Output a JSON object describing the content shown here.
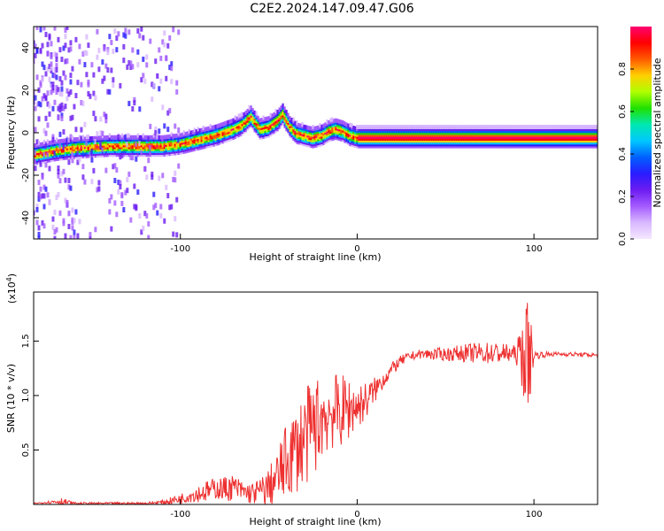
{
  "figure_title": "C2E2.2024.147.09.47.G06",
  "chart_data": [
    {
      "type": "heatmap",
      "title": "",
      "xlabel": "Height of straight line (km)",
      "ylabel": "Frequency (Hz)",
      "xlim": [
        -183,
        136
      ],
      "ylim": [
        -50,
        50
      ],
      "xticks": [
        -100,
        0,
        100
      ],
      "yticks": [
        -40,
        -20,
        0,
        20,
        40
      ],
      "colorbar": {
        "label": "Normalized spectral amplitude",
        "range": [
          0,
          1
        ],
        "ticks": [
          "0.0",
          "0.2",
          "0.4",
          "0.6",
          "0.8"
        ],
        "colors": [
          "#f4e8ff",
          "#d9b8ff",
          "#a45cff",
          "#6c1cf0",
          "#2a1cff",
          "#0060ff",
          "#00c8ff",
          "#00e8b0",
          "#20e000",
          "#b0ff00",
          "#ffd000",
          "#ff5a00",
          "#ff0000",
          "#ff0070"
        ]
      },
      "ridge": {
        "x": [
          -183,
          -170,
          -160,
          -150,
          -140,
          -130,
          -120,
          -110,
          -100,
          -90,
          -80,
          -70,
          -65,
          -60,
          -55,
          -50,
          -45,
          -42,
          -38,
          -34,
          -30,
          -25,
          -20,
          -16,
          -12,
          -8,
          -4,
          0,
          20,
          60,
          100,
          136
        ],
        "freq": [
          -10,
          -8,
          -7,
          -6.5,
          -6,
          -6,
          -6,
          -6,
          -5,
          -3,
          -1,
          2,
          4,
          8,
          2,
          3,
          6,
          9,
          3,
          0,
          -1,
          -2,
          -1,
          1,
          2,
          1,
          -1,
          -2,
          -2,
          -2,
          -2,
          -2
        ]
      },
      "grid": false
    },
    {
      "type": "line",
      "title": "",
      "xlabel": "Height of straight line (km)",
      "ylabel": "SNR (10 * v/v)",
      "y_multiplier_label": "(x10",
      "y_multiplier_exp": "4",
      "y_multiplier_close": ")",
      "xlim": [
        -183,
        136
      ],
      "ylim": [
        0,
        1.95
      ],
      "xticks": [
        -100,
        0,
        100
      ],
      "yticks": [
        0.5,
        1.0,
        1.5
      ],
      "ytick_labels": [
        "0.5",
        "1.0",
        "1.5"
      ],
      "color": "#ee3030",
      "series": [
        {
          "x": [
            -183,
            -175,
            -168,
            -160,
            -150,
            -140,
            -130,
            -120,
            -110,
            -100,
            -95,
            -90,
            -85,
            -80,
            -75,
            -70,
            -65,
            -60,
            -55,
            -50,
            -45,
            -40,
            -35,
            -30,
            -25,
            -20,
            -15,
            -10,
            -5,
            0,
            5,
            10,
            15,
            20,
            25,
            30,
            35,
            40,
            50,
            60,
            70,
            80,
            90,
            95,
            97,
            100,
            110,
            120,
            136
          ],
          "values": [
            0.01,
            0.02,
            0.03,
            0.01,
            0.01,
            0.01,
            0.01,
            0.01,
            0.02,
            0.05,
            0.08,
            0.1,
            0.12,
            0.15,
            0.14,
            0.16,
            0.12,
            0.1,
            0.12,
            0.16,
            0.25,
            0.4,
            0.5,
            0.6,
            0.7,
            0.8,
            0.85,
            0.85,
            0.88,
            0.9,
            0.95,
            1.05,
            1.15,
            1.25,
            1.32,
            1.36,
            1.38,
            1.38,
            1.38,
            1.39,
            1.39,
            1.39,
            1.38,
            1.38,
            1.38,
            1.37,
            1.38,
            1.38,
            1.37
          ],
          "noise_amp": [
            0.005,
            0.01,
            0.04,
            0.01,
            0.01,
            0.01,
            0.01,
            0.01,
            0.02,
            0.05,
            0.06,
            0.08,
            0.1,
            0.1,
            0.12,
            0.12,
            0.1,
            0.1,
            0.12,
            0.18,
            0.25,
            0.35,
            0.4,
            0.45,
            0.45,
            0.4,
            0.35,
            0.35,
            0.3,
            0.2,
            0.18,
            0.12,
            0.08,
            0.06,
            0.05,
            0.04,
            0.04,
            0.05,
            0.06,
            0.08,
            0.1,
            0.1,
            0.08,
            0.45,
            0.55,
            0.04,
            0.02,
            0.02,
            0.02
          ]
        }
      ],
      "grid": false
    }
  ]
}
